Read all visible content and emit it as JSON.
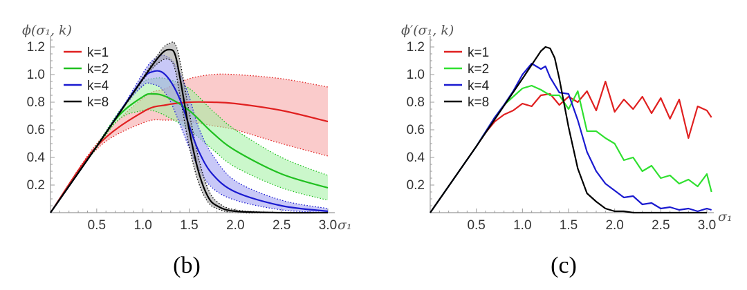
{
  "chart_data": [
    {
      "type": "line",
      "panel": "(b)",
      "ylabel": "ϕ(σ₁, k)",
      "xlabel": "σ₁",
      "xlim": [
        0,
        3.0
      ],
      "ylim": [
        0,
        1.25
      ],
      "x_ticks": [
        "0.5",
        "1.0",
        "1.5",
        "2.0",
        "2.5",
        "3.0"
      ],
      "y_ticks": [
        "0.2",
        "0.4",
        "0.6",
        "0.8",
        "1.0",
        "1.2"
      ],
      "legend_position": "top-left",
      "bands": true,
      "series": [
        {
          "name": "k=1",
          "color": "#e02020",
          "band_color": "#f5a0a0",
          "x": [
            0,
            0.5,
            1.0,
            1.25,
            1.5,
            1.75,
            2.0,
            2.5,
            3.0
          ],
          "mean": [
            0,
            0.48,
            0.73,
            0.78,
            0.8,
            0.8,
            0.79,
            0.74,
            0.66
          ],
          "lower": [
            0,
            0.46,
            0.65,
            0.67,
            0.66,
            0.63,
            0.6,
            0.5,
            0.41
          ],
          "upper": [
            0,
            0.5,
            0.83,
            0.9,
            0.97,
            1.0,
            1.0,
            0.97,
            0.91
          ]
        },
        {
          "name": "k=2",
          "color": "#20c020",
          "band_color": "#a0f0a0",
          "x": [
            0,
            0.5,
            0.75,
            1.0,
            1.1,
            1.25,
            1.5,
            1.75,
            2.0,
            2.5,
            3.0
          ],
          "mean": [
            0,
            0.48,
            0.71,
            0.84,
            0.86,
            0.84,
            0.74,
            0.58,
            0.45,
            0.28,
            0.18
          ],
          "lower": [
            0,
            0.47,
            0.68,
            0.74,
            0.74,
            0.7,
            0.6,
            0.46,
            0.33,
            0.18,
            0.09
          ],
          "upper": [
            0,
            0.49,
            0.74,
            0.94,
            0.97,
            0.97,
            0.9,
            0.74,
            0.6,
            0.4,
            0.27
          ]
        },
        {
          "name": "k=4",
          "color": "#1a1ad0",
          "band_color": "#9a9af0",
          "x": [
            0,
            0.5,
            0.75,
            1.0,
            1.1,
            1.2,
            1.3,
            1.4,
            1.5,
            1.6,
            1.75,
            2.0,
            2.5,
            3.0
          ],
          "mean": [
            0,
            0.48,
            0.73,
            0.97,
            1.02,
            1.02,
            0.95,
            0.82,
            0.63,
            0.45,
            0.28,
            0.15,
            0.05,
            0.01
          ],
          "lower": [
            0,
            0.48,
            0.73,
            0.92,
            0.93,
            0.9,
            0.8,
            0.64,
            0.47,
            0.32,
            0.18,
            0.09,
            0.02,
            0.0
          ],
          "upper": [
            0,
            0.48,
            0.73,
            1.01,
            1.1,
            1.14,
            1.11,
            1.01,
            0.84,
            0.62,
            0.42,
            0.23,
            0.09,
            0.03
          ]
        },
        {
          "name": "k=8",
          "color": "#000000",
          "band_color": "#9a9a9a",
          "x": [
            0,
            0.5,
            1.0,
            1.2,
            1.3,
            1.35,
            1.4,
            1.5,
            1.6,
            1.7,
            1.8,
            2.0,
            2.5,
            3.0
          ],
          "mean": [
            0,
            0.48,
            0.97,
            1.15,
            1.18,
            1.14,
            0.98,
            0.6,
            0.3,
            0.12,
            0.05,
            0.01,
            0.0,
            0.0
          ],
          "lower": [
            0,
            0.48,
            0.96,
            1.1,
            1.1,
            1.03,
            0.85,
            0.48,
            0.22,
            0.08,
            0.03,
            0.0,
            0.0,
            0.0
          ],
          "upper": [
            0,
            0.48,
            0.98,
            1.18,
            1.23,
            1.22,
            1.1,
            0.73,
            0.4,
            0.18,
            0.08,
            0.02,
            0.0,
            0.0
          ]
        }
      ]
    },
    {
      "type": "line",
      "panel": "(c)",
      "ylabel": "ϕ′(σ₁, k)",
      "xlabel": "σ₁",
      "xlim": [
        0,
        3.0
      ],
      "ylim": [
        0,
        1.25
      ],
      "x_ticks": [
        "0.5",
        "1.0",
        "1.5",
        "2.0",
        "2.5",
        "3.0"
      ],
      "y_ticks": [
        "0.2",
        "0.4",
        "0.6",
        "0.8",
        "1.0",
        "1.2"
      ],
      "legend_position": "top-left",
      "bands": false,
      "series": [
        {
          "name": "k=1",
          "color": "#e02020",
          "x": [
            0,
            0.5,
            0.6,
            0.7,
            0.8,
            0.9,
            1.0,
            1.1,
            1.2,
            1.3,
            1.4,
            1.5,
            1.6,
            1.7,
            1.8,
            1.9,
            2.0,
            2.1,
            2.2,
            2.3,
            2.4,
            2.5,
            2.6,
            2.7,
            2.8,
            2.9,
            3.0,
            3.05
          ],
          "values": [
            0,
            0.48,
            0.58,
            0.66,
            0.71,
            0.74,
            0.79,
            0.77,
            0.85,
            0.86,
            0.78,
            0.84,
            0.8,
            0.88,
            0.74,
            0.95,
            0.73,
            0.82,
            0.75,
            0.84,
            0.72,
            0.83,
            0.68,
            0.82,
            0.54,
            0.77,
            0.74,
            0.69
          ]
        },
        {
          "name": "k=2",
          "color": "#30e030",
          "x": [
            0,
            0.5,
            0.7,
            0.8,
            0.9,
            1.0,
            1.1,
            1.2,
            1.3,
            1.4,
            1.5,
            1.6,
            1.7,
            1.8,
            1.9,
            2.0,
            2.1,
            2.2,
            2.3,
            2.4,
            2.5,
            2.6,
            2.7,
            2.8,
            2.9,
            3.0,
            3.05
          ],
          "values": [
            0,
            0.48,
            0.69,
            0.78,
            0.84,
            0.9,
            0.92,
            0.89,
            0.85,
            0.85,
            0.75,
            0.88,
            0.59,
            0.59,
            0.54,
            0.5,
            0.38,
            0.4,
            0.3,
            0.34,
            0.25,
            0.27,
            0.21,
            0.24,
            0.19,
            0.28,
            0.15
          ]
        },
        {
          "name": "k=4",
          "color": "#1a1ad0",
          "x": [
            0,
            0.5,
            0.7,
            0.8,
            0.9,
            1.0,
            1.1,
            1.2,
            1.25,
            1.3,
            1.4,
            1.5,
            1.6,
            1.7,
            1.8,
            1.9,
            2.0,
            2.1,
            2.2,
            2.3,
            2.4,
            2.5,
            2.6,
            2.7,
            2.8,
            2.9,
            3.0,
            3.05
          ],
          "values": [
            0,
            0.48,
            0.69,
            0.78,
            0.88,
            1.0,
            1.08,
            1.04,
            1.06,
            0.98,
            0.87,
            0.86,
            0.67,
            0.44,
            0.3,
            0.21,
            0.16,
            0.11,
            0.12,
            0.06,
            0.07,
            0.03,
            0.04,
            0.02,
            0.03,
            0.01,
            0.03,
            0.02
          ]
        },
        {
          "name": "k=8",
          "color": "#000000",
          "x": [
            0,
            0.5,
            1.0,
            1.1,
            1.2,
            1.25,
            1.3,
            1.35,
            1.4,
            1.5,
            1.6,
            1.7,
            1.8,
            1.9,
            2.0,
            2.1,
            2.2,
            2.5,
            3.0
          ],
          "values": [
            0,
            0.48,
            0.97,
            1.07,
            1.17,
            1.2,
            1.19,
            1.12,
            0.97,
            0.62,
            0.32,
            0.14,
            0.08,
            0.03,
            0.01,
            0.01,
            0.0,
            0.0,
            0.0
          ]
        }
      ]
    }
  ],
  "captions": [
    "(b)",
    "(c)"
  ]
}
